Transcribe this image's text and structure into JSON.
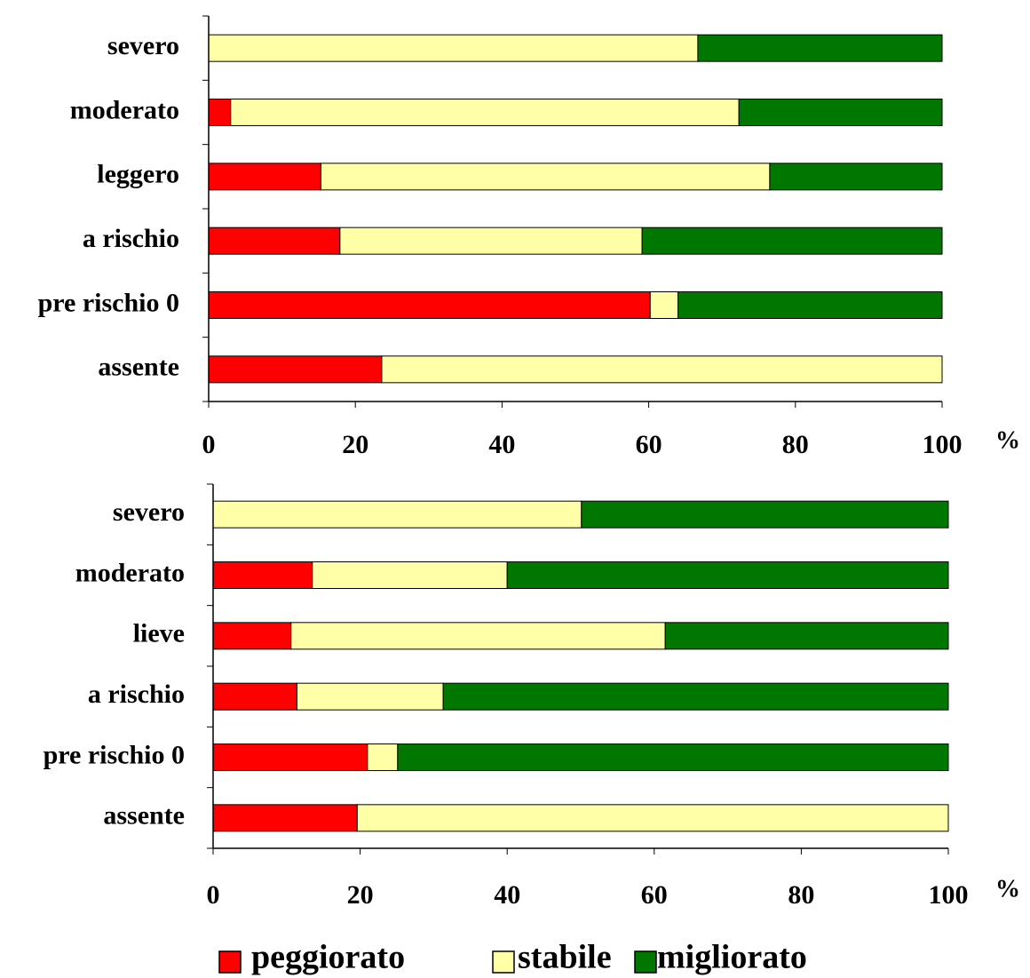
{
  "chart_data": [
    {
      "type": "stacked_bar_horizontal",
      "x_label": "%",
      "categories": [
        "severo",
        "moderato",
        "leggero",
        "a rischio",
        "pre rischio 0",
        "assente"
      ],
      "series": [
        {
          "name": "peggiorato",
          "color": "#ff0000",
          "values": [
            0,
            3.0,
            15.3,
            17.9,
            60.2,
            23.6
          ]
        },
        {
          "name": "stabile",
          "color": "#ffffa8",
          "values": [
            66.7,
            69.3,
            61.2,
            41.2,
            3.8,
            76.4
          ]
        },
        {
          "name": "migliorato",
          "color": "#007800",
          "values": [
            33.3,
            27.7,
            23.5,
            40.9,
            36.0,
            0
          ]
        }
      ],
      "xlim": [
        0,
        100
      ],
      "xticks": [
        0,
        20,
        40,
        60,
        80,
        100
      ]
    },
    {
      "type": "stacked_bar_horizontal",
      "x_label": "%",
      "categories": [
        "severo",
        "moderato",
        "lieve",
        "a rischio",
        "pre rischio 0",
        "assente"
      ],
      "series": [
        {
          "name": "peggiorato",
          "color": "#ff0000",
          "values": [
            0,
            13.5,
            10.6,
            11.4,
            21.0,
            19.6
          ]
        },
        {
          "name": "stabile",
          "color": "#ffffa8",
          "values": [
            50.1,
            26.5,
            50.9,
            19.9,
            4.1,
            80.4
          ]
        },
        {
          "name": "migliorato",
          "color": "#007800",
          "values": [
            49.9,
            60.0,
            38.5,
            68.7,
            74.9,
            0
          ]
        }
      ],
      "xlim": [
        0,
        100
      ],
      "xticks": [
        0,
        20,
        40,
        60,
        80,
        100
      ]
    }
  ]
}
